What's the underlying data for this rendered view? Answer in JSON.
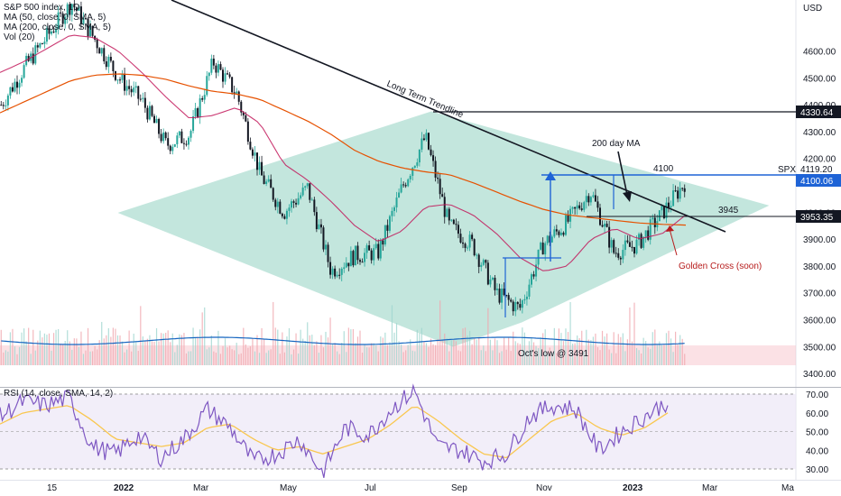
{
  "legend": {
    "line1": "S&P 500 index, 1D",
    "line2": "MA (50, close, 0, SMA, 5)",
    "line3": "MA (200, close, 0, SMA, 5)",
    "line4": "Vol (20)",
    "rsi": "RSI (14, close, SMA, 14, 2)"
  },
  "price_axis": {
    "unit": "USD",
    "ticks": [
      "4600.00",
      "4500.00",
      "4400.00",
      "4300.00",
      "4200.00",
      "4000.00",
      "3900.00",
      "3800.00",
      "3700.00",
      "3600.00",
      "3500.00",
      "3400.00"
    ]
  },
  "price_tags": {
    "a": "4330.64",
    "b": "4100.06",
    "c": "3953.35",
    "d": "4119.20",
    "spx": "SPX"
  },
  "rsi_axis": {
    "ticks": [
      "70.00",
      "60.00",
      "50.00",
      "40.00",
      "30.00"
    ]
  },
  "time_axis": {
    "ticks": [
      "15",
      "2022",
      "Mar",
      "May",
      "Jul",
      "Sep",
      "Nov",
      "2023",
      "Mar",
      "Ma"
    ]
  },
  "annotations": {
    "trendline": "Long Term Trendline",
    "ma200": "200 day MA",
    "level_4100": "4100",
    "level_3945": "3945",
    "golden_cross": "Golden Cross (soon)",
    "oct_low": "Oct's low @ 3491"
  },
  "colors": {
    "up": "#26a69a",
    "down": "#131722",
    "ma50": "#c2185b",
    "ma200": "#e65100",
    "vol_ma": "#1565c0",
    "rsi": "#7e57c2",
    "rsi_ma": "#f9c74f",
    "diamond": "#7cc9b6",
    "level_line": "#1e63d6",
    "golden_cross": "#b71c1c"
  },
  "chart_data": {
    "type": "line",
    "title": "S&P 500 index, 1D",
    "ylabel": "USD",
    "ylim": [
      3380,
      4790
    ],
    "levels": [
      4330.64,
      4100.06,
      3953.35
    ],
    "x": [
      "2021-11-15",
      "2021-12-01",
      "2021-12-15",
      "2022-01-01",
      "2022-01-15",
      "2022-02-01",
      "2022-02-15",
      "2022-03-01",
      "2022-03-15",
      "2022-04-01",
      "2022-04-15",
      "2022-05-01",
      "2022-05-15",
      "2022-06-01",
      "2022-06-15",
      "2022-07-01",
      "2022-07-15",
      "2022-08-01",
      "2022-08-15",
      "2022-09-01",
      "2022-09-15",
      "2022-10-01",
      "2022-10-15",
      "2022-11-01",
      "2022-11-15",
      "2022-12-01",
      "2022-12-15",
      "2023-01-01",
      "2023-01-15",
      "2023-02-01"
    ],
    "series": [
      {
        "name": "S&P 500 index",
        "values": [
          4400,
          4540,
          4660,
          4780,
          4640,
          4500,
          4410,
          4250,
          4290,
          4560,
          4440,
          4140,
          4000,
          4090,
          3780,
          3840,
          3850,
          4090,
          4280,
          3950,
          3880,
          3700,
          3640,
          3880,
          3960,
          4080,
          3850,
          3880,
          3990,
          4110
        ]
      },
      {
        "name": "MA (50)",
        "values": [
          4520,
          4560,
          4610,
          4660,
          4650,
          4600,
          4520,
          4430,
          4350,
          4360,
          4390,
          4330,
          4180,
          4120,
          4040,
          3950,
          3890,
          3930,
          4020,
          4030,
          3990,
          3920,
          3830,
          3780,
          3800,
          3900,
          3940,
          3900,
          3920,
          3990
        ]
      },
      {
        "name": "MA (200)",
        "values": [
          4370,
          4410,
          4450,
          4490,
          4510,
          4515,
          4510,
          4495,
          4470,
          4450,
          4440,
          4420,
          4380,
          4340,
          4290,
          4230,
          4190,
          4165,
          4150,
          4140,
          4110,
          4075,
          4040,
          4010,
          3990,
          3980,
          3970,
          3960,
          3955,
          3952
        ]
      }
    ],
    "rsi": {
      "ylim": [
        25,
        75
      ],
      "values": [
        58,
        66,
        64,
        68,
        42,
        38,
        48,
        36,
        46,
        62,
        52,
        34,
        38,
        46,
        28,
        52,
        48,
        62,
        72,
        42,
        40,
        34,
        38,
        58,
        64,
        62,
        40,
        50,
        58,
        66
      ],
      "ma_values": [
        54,
        60,
        62,
        64,
        56,
        46,
        44,
        42,
        44,
        52,
        54,
        46,
        40,
        42,
        38,
        42,
        46,
        54,
        64,
        56,
        46,
        38,
        36,
        46,
        56,
        60,
        52,
        48,
        52,
        60
      ]
    }
  }
}
